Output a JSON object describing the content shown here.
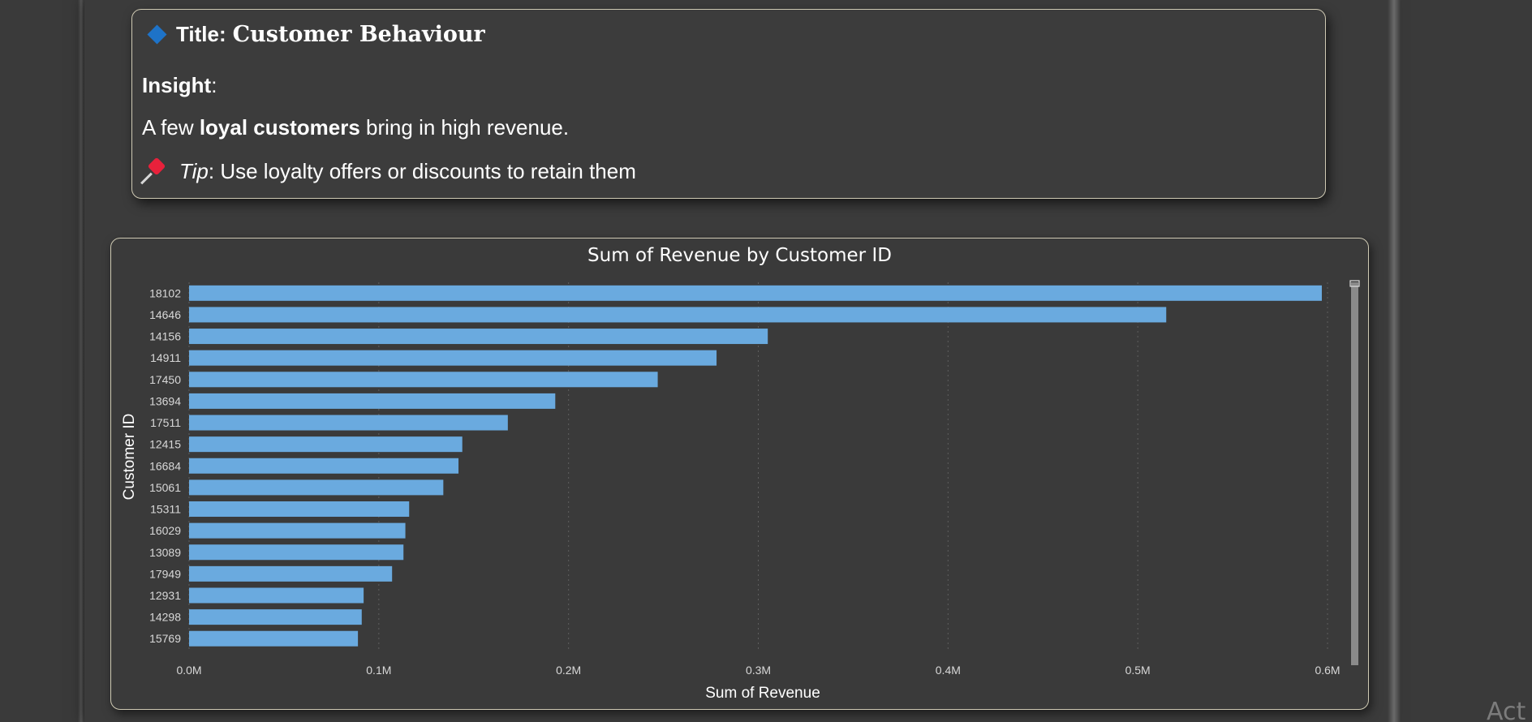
{
  "insight_card": {
    "title_prefix": "Title:",
    "title_name": "Customer Behaviour",
    "insight_label": "Insight",
    "insight_colon": ":",
    "insight_text_pre": "A few ",
    "insight_text_bold": "loyal customers",
    "insight_text_post": " bring in high revenue.",
    "tip_label": "Tip",
    "tip_text": ": Use loyalty offers or discounts to retain them",
    "diamond_icon": "blue-diamond-icon",
    "pin_icon": "pushpin-icon"
  },
  "watermark": {
    "text": "Act"
  },
  "colors": {
    "bar": "#6aaadf",
    "diamond": "#1e73c8",
    "pin": "#e8213b"
  },
  "chart_data": {
    "type": "bar",
    "orientation": "horizontal",
    "title": "Sum of Revenue by Customer ID",
    "xlabel": "Sum of Revenue",
    "ylabel": "Customer ID",
    "categories": [
      "18102",
      "14646",
      "14156",
      "14911",
      "17450",
      "13694",
      "17511",
      "12415",
      "16684",
      "15061",
      "15311",
      "16029",
      "13089",
      "17949",
      "12931",
      "14298",
      "15769"
    ],
    "values": [
      597000,
      515000,
      305000,
      278000,
      247000,
      193000,
      168000,
      144000,
      142000,
      134000,
      116000,
      114000,
      113000,
      107000,
      92000,
      91000,
      89000
    ],
    "xlim": [
      0,
      600000
    ],
    "xticks": [
      0,
      100000,
      200000,
      300000,
      400000,
      500000,
      600000
    ],
    "xtick_labels": [
      "0.0M",
      "0.1M",
      "0.2M",
      "0.3M",
      "0.4M",
      "0.5M",
      "0.6M"
    ],
    "grid": "vertical dotted"
  }
}
